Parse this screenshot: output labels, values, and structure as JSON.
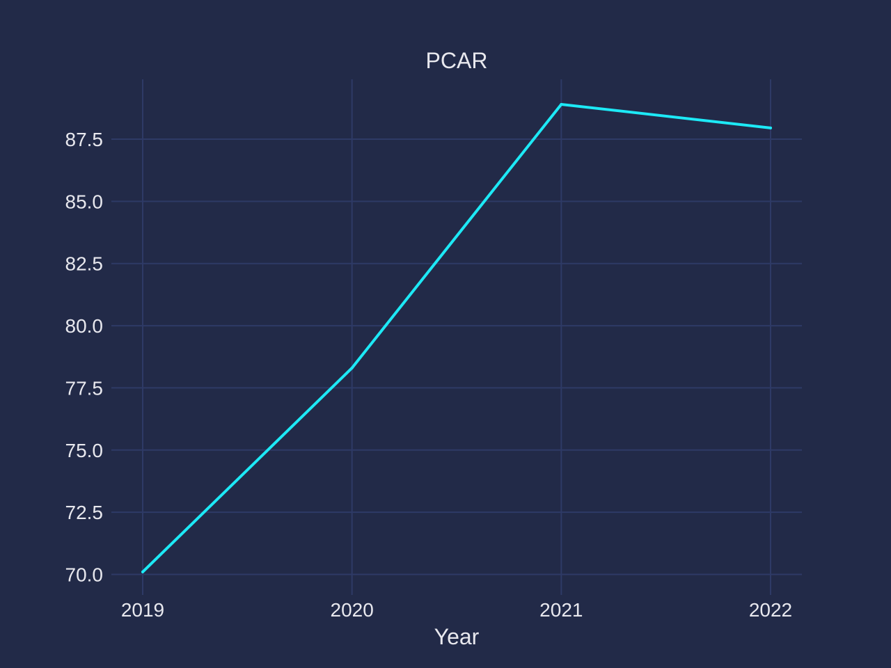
{
  "chart_data": {
    "type": "line",
    "title": "PCAR",
    "xlabel": "Year",
    "ylabel": "",
    "categories": [
      "2019",
      "2020",
      "2021",
      "2022"
    ],
    "series": [
      {
        "values": [
          70.1,
          78.3,
          88.9,
          87.95
        ]
      }
    ],
    "ylim": [
      69.3,
      90.6
    ],
    "yticks": [
      70.0,
      72.5,
      75.0,
      77.5,
      80.0,
      82.5,
      85.0,
      87.5
    ],
    "ytick_labels": [
      "70.0",
      "72.5",
      "75.0",
      "77.5",
      "80.0",
      "82.5",
      "85.0",
      "87.5"
    ],
    "grid": true,
    "legend": "none",
    "colors": {
      "background": "#222a48",
      "grid": "#2e3a66",
      "line": "#1de9f6",
      "text": "#e8e8ee"
    }
  }
}
